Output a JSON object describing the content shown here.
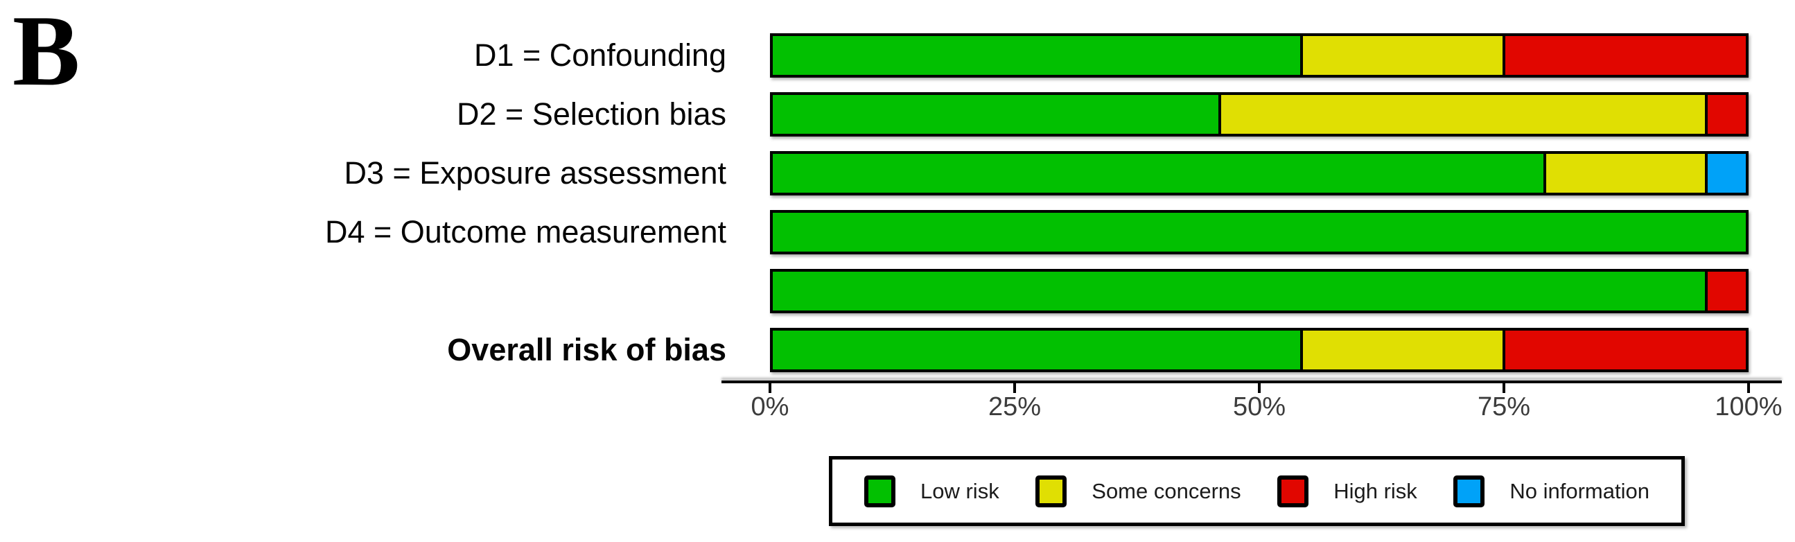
{
  "panel_label": "B",
  "chart_data": {
    "type": "bar",
    "orientation": "horizontal",
    "stacked": true,
    "title": "",
    "xlabel": "",
    "ylabel": "",
    "unit": "percent of studies",
    "categories": [
      {
        "label": "D1 = Confounding",
        "bold": false
      },
      {
        "label": "D2 = Selection bias",
        "bold": false
      },
      {
        "label": "D3 = Exposure assessment",
        "bold": false
      },
      {
        "label": "D4 = Outcome measurement",
        "bold": false
      },
      {
        "label": "",
        "bold": false
      },
      {
        "label": "Overall risk of bias",
        "bold": true
      }
    ],
    "series": [
      {
        "name": "Low risk",
        "color": "#02C001",
        "values": [
          54.2,
          45.8,
          79.2,
          100,
          95.8,
          54.2
        ]
      },
      {
        "name": "Some concerns",
        "color": "#E0DF03",
        "values": [
          20.8,
          50.0,
          16.6,
          0,
          0,
          20.8
        ]
      },
      {
        "name": "High risk",
        "color": "#E10600",
        "values": [
          25.0,
          4.2,
          0,
          0,
          4.2,
          25.0
        ]
      },
      {
        "name": "No information",
        "color": "#00A2F8",
        "values": [
          0,
          0,
          4.2,
          0,
          0,
          0
        ]
      }
    ],
    "x_axis": {
      "range": [
        0,
        100
      ],
      "ticks": [
        {
          "label": "0%",
          "pct": 0
        },
        {
          "label": "25%",
          "pct": 25
        },
        {
          "label": "50%",
          "pct": 50
        },
        {
          "label": "75%",
          "pct": 75
        },
        {
          "label": "100%",
          "pct": 100
        }
      ]
    },
    "grid": false,
    "legend_position": "bottom"
  },
  "legend": {
    "items": [
      {
        "label": "Low risk",
        "color": "#02C001"
      },
      {
        "label": "Some concerns",
        "color": "#E0DF03"
      },
      {
        "label": "High risk",
        "color": "#E10600"
      },
      {
        "label": "No information",
        "color": "#00A2F8"
      }
    ]
  }
}
